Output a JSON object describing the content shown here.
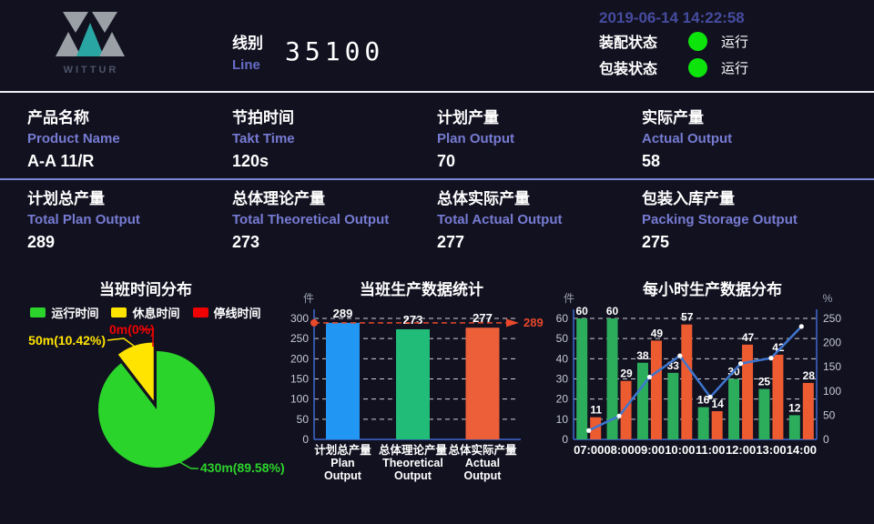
{
  "header": {
    "logo_text": "WITTUR",
    "line_label_zh": "线别",
    "line_label_en": "Line",
    "line_value": "35100",
    "datetime": "2019-06-14 14:22:58",
    "status_dot_color": "#0ce40c",
    "statuses": [
      {
        "label": "装配状态",
        "value": "运行"
      },
      {
        "label": "包装状态",
        "value": "运行"
      }
    ]
  },
  "info_rows": [
    [
      {
        "zh": "产品名称",
        "en": "Product Name",
        "value": "A-A 11/R"
      },
      {
        "zh": "节拍时间",
        "en": "Takt Time",
        "value": "120s"
      },
      {
        "zh": "计划产量",
        "en": "Plan Output",
        "value": "70"
      },
      {
        "zh": "实际产量",
        "en": "Actual Output",
        "value": "58"
      }
    ],
    [
      {
        "zh": "计划总产量",
        "en": "Total Plan Output",
        "value": "289"
      },
      {
        "zh": "总体理论产量",
        "en": "Total Theoretical Output",
        "value": "273"
      },
      {
        "zh": "总体实际产量",
        "en": "Total Actual Output",
        "value": "277"
      },
      {
        "zh": "包装入库产量",
        "en": "Packing Storage Output",
        "value": "275"
      }
    ]
  ],
  "chart_data": [
    {
      "type": "pie",
      "title": "当班时间分布",
      "legend": [
        "运行时间",
        "休息时间",
        "停线时间"
      ],
      "slices": [
        {
          "name": "运行时间",
          "label": "430m(89.58%)",
          "minutes": 430,
          "pct": 89.58,
          "color": "#2bd42b"
        },
        {
          "name": "休息时间",
          "label": "50m(10.42%)",
          "minutes": 50,
          "pct": 10.42,
          "color": "#ffe400"
        },
        {
          "name": "停线时间",
          "label": "0m(0%)",
          "minutes": 0,
          "pct": 0,
          "color": "#ee0202"
        }
      ]
    },
    {
      "type": "bar",
      "title": "当班生产数据统计",
      "unit": "件",
      "categories": [
        [
          "计划总产量",
          "Plan",
          "Output"
        ],
        [
          "总体理论产量",
          "Theoretical",
          "Output"
        ],
        [
          "总体实际产量",
          "Actual",
          "Output"
        ]
      ],
      "values": [
        289,
        273,
        277
      ],
      "colors": [
        "#2196f3",
        "#21bd78",
        "#ed5f38"
      ],
      "ylim": [
        0,
        300
      ],
      "ytick_step": 50,
      "markline": {
        "value": 289,
        "color": "#e8492b"
      }
    },
    {
      "type": "bar+line",
      "title": "每小时生产数据分布",
      "unit_left": "件",
      "unit_right": "%",
      "categories": [
        "07:00",
        "08:00",
        "09:00",
        "10:00",
        "11:00",
        "12:00",
        "13:00",
        "14:00"
      ],
      "series": [
        {
          "kind": "bar",
          "color": "#2cad5c",
          "values": [
            60,
            60,
            38,
            33,
            16,
            30,
            25,
            12
          ]
        },
        {
          "kind": "bar",
          "color": "#ed5b31",
          "values": [
            11,
            29,
            49,
            57,
            14,
            47,
            42,
            28
          ]
        },
        {
          "kind": "line",
          "axis": "right",
          "color": "#3e76d0",
          "values": [
            18.3,
            48.3,
            128.9,
            172.7,
            87.5,
            156.7,
            168.0,
            233.3
          ]
        }
      ],
      "ylim_left": [
        0,
        60
      ],
      "ylim_right": [
        0,
        250
      ],
      "ytick_step_left": 10,
      "ytick_step_right": 50
    }
  ]
}
